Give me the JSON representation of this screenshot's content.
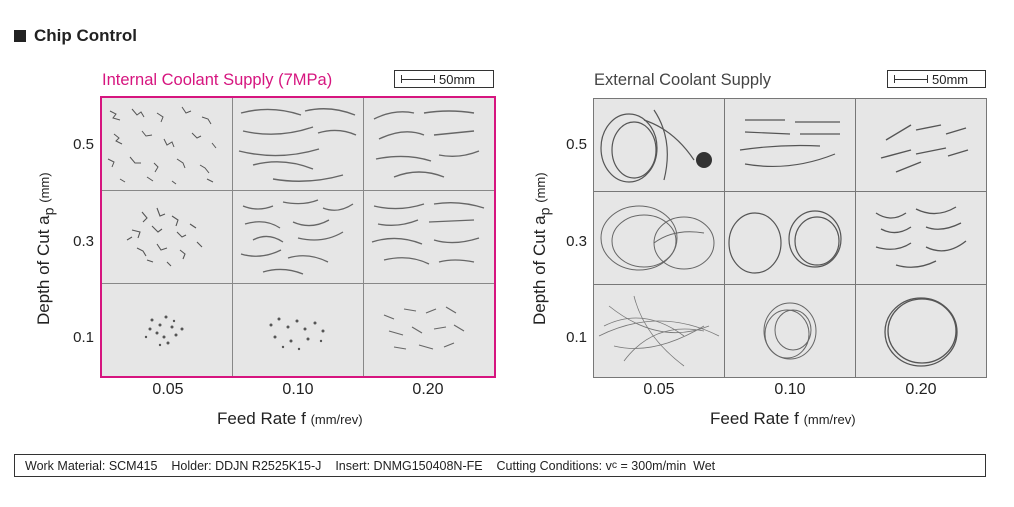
{
  "title": "Chip Control",
  "scale_label": "50mm",
  "panels": {
    "internal": {
      "title": "Internal Coolant Supply (7MPa)",
      "accent": "#d6157f",
      "y_ticks": [
        "0.5",
        "0.3",
        "0.1"
      ],
      "x_ticks": [
        "0.05",
        "0.10",
        "0.20"
      ],
      "ylabel": "Depth of Cut a",
      "ylabel_sub": "p",
      "ylabel_unit": "(mm)",
      "xlabel": "Feed Rate f",
      "xlabel_unit": "(mm/rev)"
    },
    "external": {
      "title": "External Coolant Supply",
      "y_ticks": [
        "0.5",
        "0.3",
        "0.1"
      ],
      "x_ticks": [
        "0.05",
        "0.10",
        "0.20"
      ],
      "ylabel": "Depth of Cut a",
      "ylabel_sub": "p",
      "ylabel_unit": "(mm)",
      "xlabel": "Feed Rate f",
      "xlabel_unit": "(mm/rev)"
    }
  },
  "footer": {
    "work_material": "Work Material: SCM415",
    "holder": "Holder: DDJN R2525K15-J",
    "insert": "Insert: DNMG150408N-FE",
    "cutting": "Cutting Conditions: v",
    "cutting_sub": "c",
    "cutting_rest": " = 300m/min  Wet"
  }
}
